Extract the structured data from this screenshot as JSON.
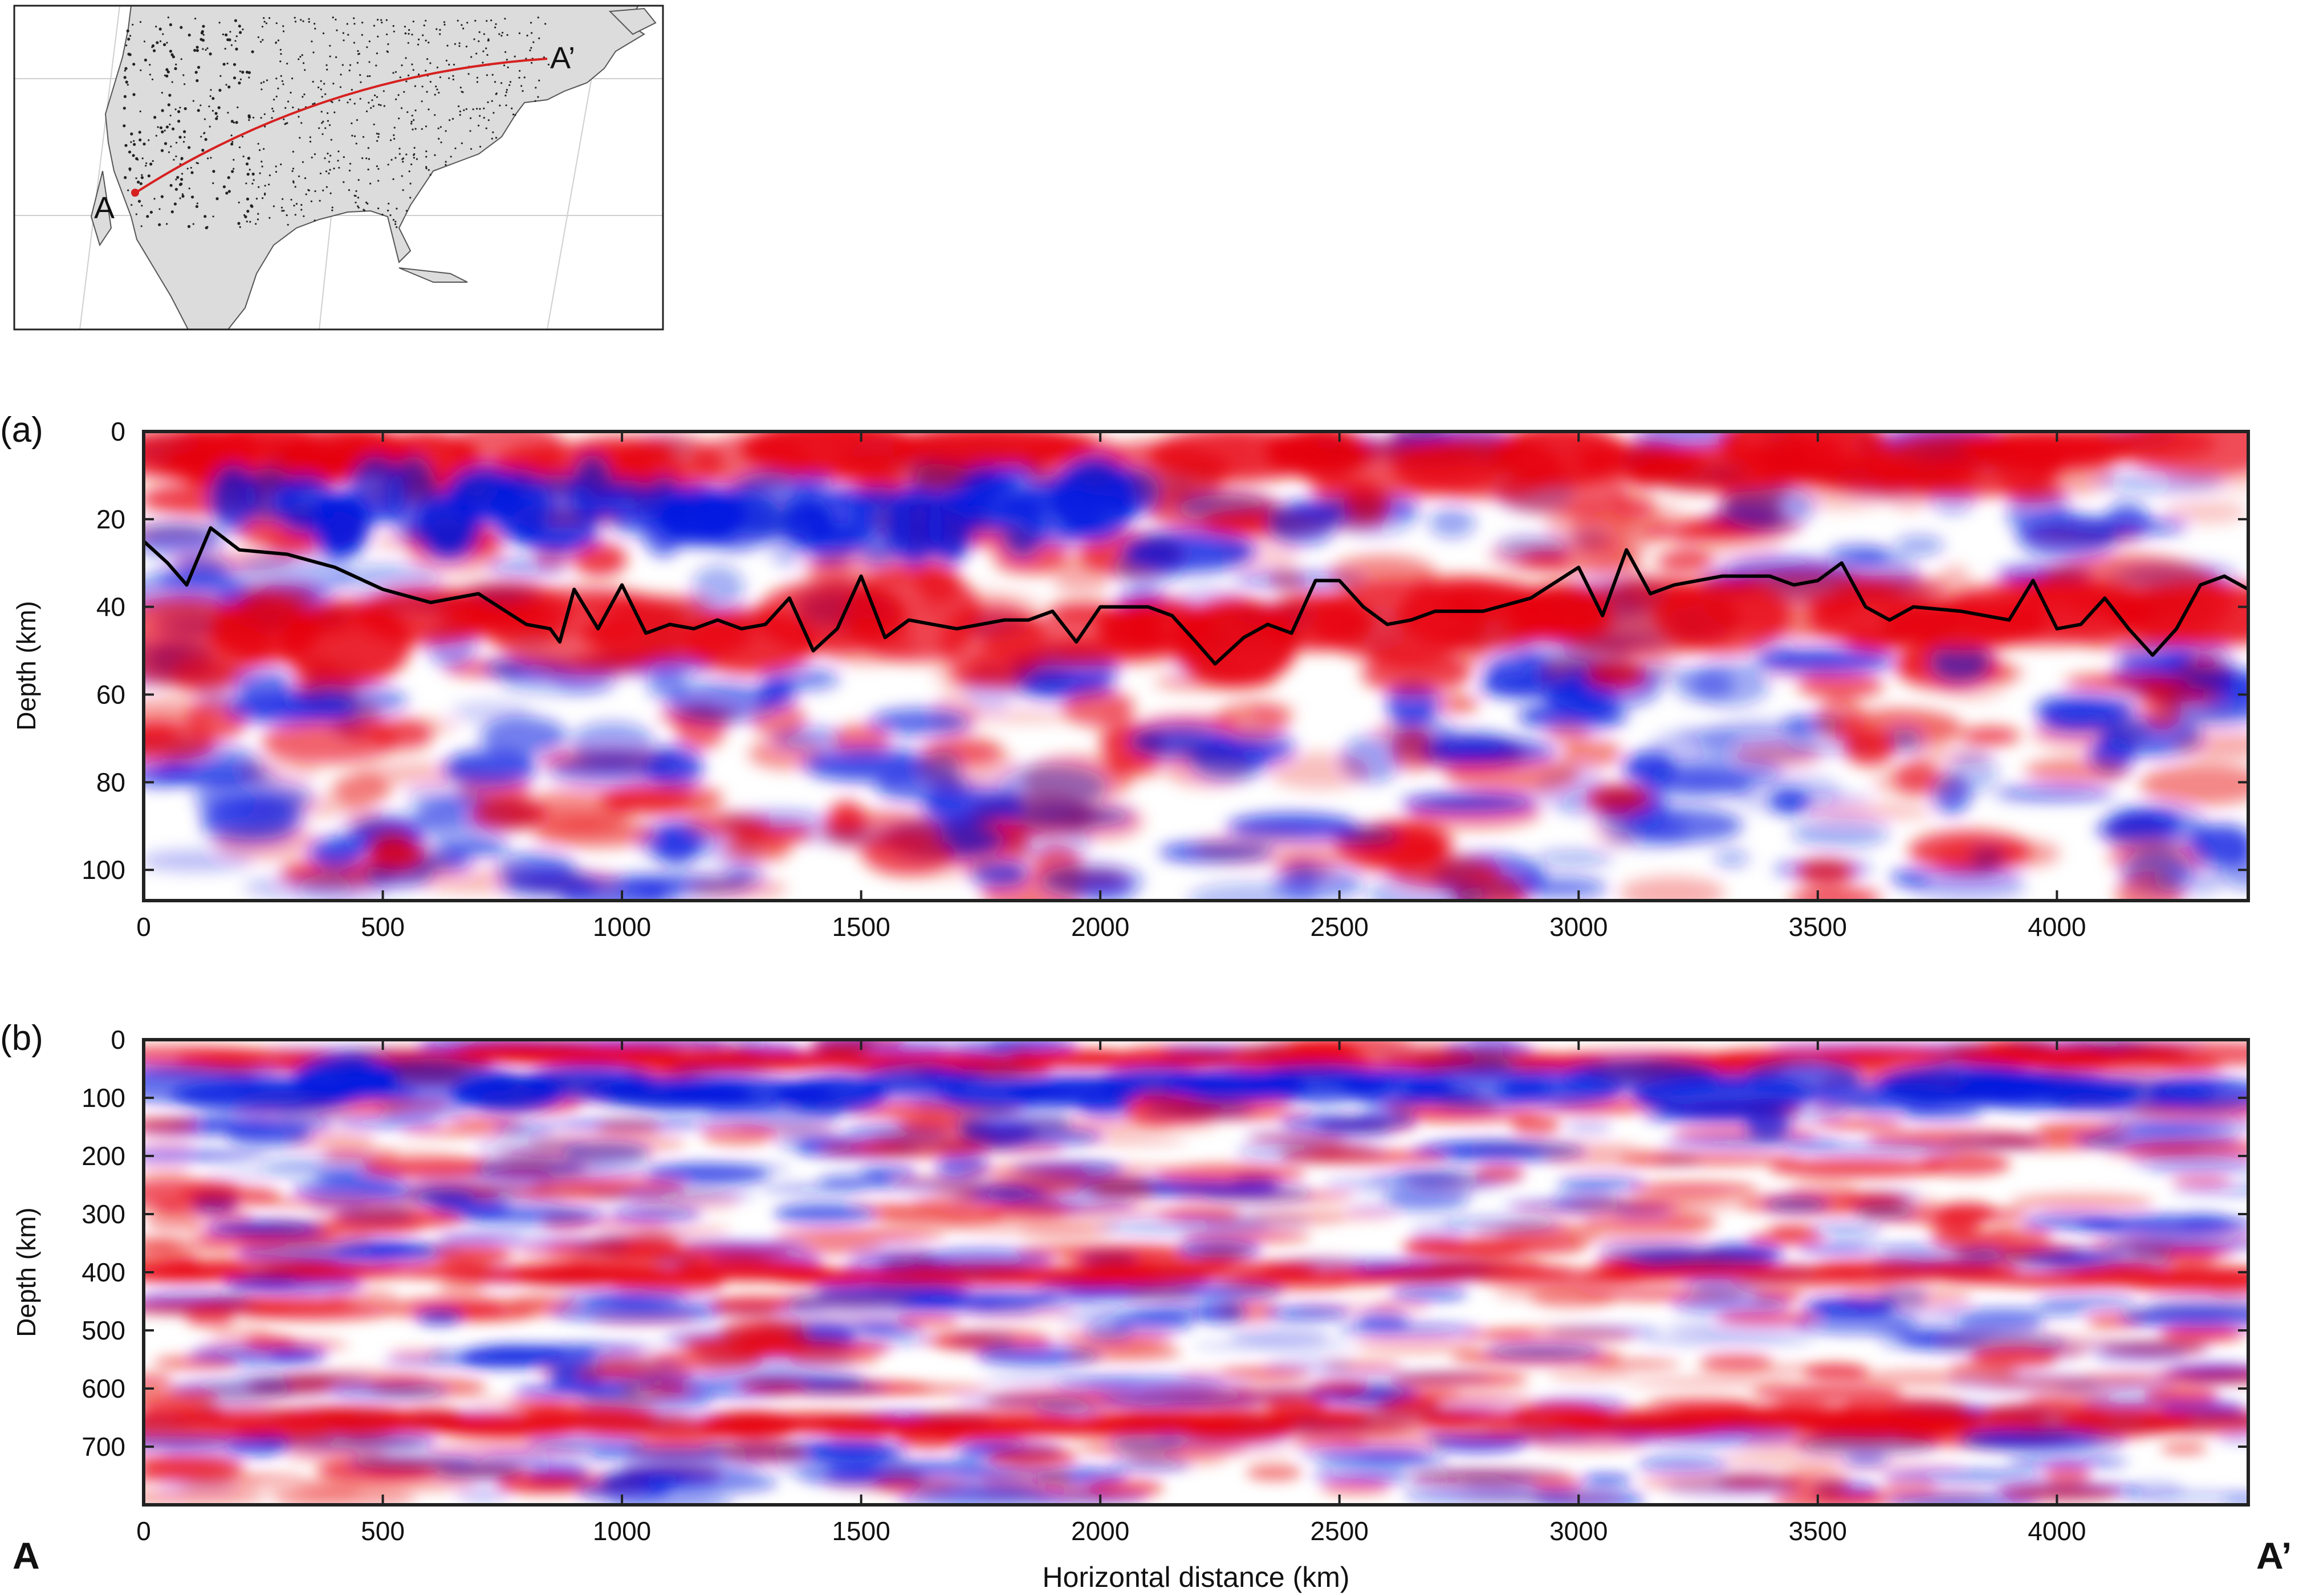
{
  "figure": {
    "map": {
      "start_label": "A",
      "end_label": "A’",
      "colors": {
        "land": "#d9d9d9",
        "ocean": "#ffffff",
        "profile_line": "#d62020",
        "stations": "#222222"
      }
    },
    "panel_a": {
      "panel_label": "(a)",
      "ylabel": "Depth (km)",
      "xlim": [
        0,
        4400
      ],
      "ylim": [
        107,
        0
      ],
      "x_ticks": [
        "0",
        "500",
        "1000",
        "1500",
        "2000",
        "2500",
        "3000",
        "3500",
        "4000"
      ],
      "y_ticks": [
        "0",
        "20",
        "40",
        "60",
        "80",
        "100"
      ]
    },
    "panel_b": {
      "panel_label": "(b)",
      "ylabel": "Depth (km)",
      "xlabel": "Horizontal distance (km)",
      "xlim": [
        0,
        4400
      ],
      "ylim": [
        800,
        0
      ],
      "x_ticks": [
        "0",
        "500",
        "1000",
        "1500",
        "2000",
        "2500",
        "3000",
        "3500",
        "4000"
      ],
      "y_ticks": [
        "0",
        "100",
        "200",
        "300",
        "400",
        "500",
        "600",
        "700"
      ]
    },
    "bottom_labels": {
      "left": "A",
      "right": "A’"
    },
    "colors": {
      "positive": "#e8000b",
      "negative": "#0015e0",
      "line": "#000000"
    }
  },
  "chart_data": [
    {
      "type": "heatmap",
      "title": "",
      "xlabel": "",
      "ylabel": "Depth (km)",
      "xlim": [
        0,
        4400
      ],
      "ylim": [
        107,
        0
      ],
      "grid": false,
      "legend": "none",
      "bands": [
        {
          "x_range": [
            0,
            4400
          ],
          "depth_range": [
            0,
            12
          ],
          "polarity": "positive"
        },
        {
          "x_range": [
            150,
            2100
          ],
          "depth_range": [
            10,
            25
          ],
          "polarity": "negative"
        },
        {
          "x_range": [
            0,
            4400
          ],
          "depth_range": [
            35,
            52
          ],
          "polarity": "positive"
        }
      ],
      "series": [
        {
          "type": "line",
          "x": [
            0,
            50,
            90,
            140,
            200,
            300,
            400,
            500,
            600,
            700,
            800,
            850,
            870,
            900,
            950,
            1000,
            1050,
            1100,
            1150,
            1200,
            1250,
            1300,
            1350,
            1400,
            1450,
            1500,
            1550,
            1600,
            1650,
            1700,
            1750,
            1800,
            1850,
            1900,
            1950,
            2000,
            2100,
            2150,
            2200,
            2240,
            2300,
            2350,
            2400,
            2450,
            2500,
            2550,
            2600,
            2650,
            2700,
            2800,
            2900,
            3000,
            3050,
            3100,
            3150,
            3200,
            3300,
            3400,
            3450,
            3500,
            3550,
            3600,
            3650,
            3700,
            3800,
            3900,
            3950,
            4000,
            4050,
            4100,
            4150,
            4200,
            4250,
            4300,
            4350,
            4400
          ],
          "y": [
            25,
            30,
            35,
            22,
            27,
            28,
            31,
            36,
            39,
            37,
            44,
            45,
            48,
            36,
            45,
            35,
            46,
            44,
            45,
            43,
            45,
            44,
            38,
            50,
            45,
            33,
            47,
            43,
            44,
            45,
            44,
            43,
            43,
            41,
            48,
            40,
            40,
            42,
            48,
            53,
            47,
            44,
            46,
            34,
            34,
            40,
            44,
            43,
            41,
            41,
            38,
            31,
            42,
            27,
            37,
            35,
            33,
            33,
            35,
            34,
            30,
            40,
            43,
            40,
            41,
            43,
            34,
            45,
            44,
            38,
            45,
            51,
            45,
            35,
            33,
            36
          ]
        }
      ]
    },
    {
      "type": "heatmap",
      "title": "",
      "xlabel": "Horizontal distance (km)",
      "ylabel": "Depth (km)",
      "xlim": [
        0,
        4400
      ],
      "ylim": [
        800,
        0
      ],
      "grid": false,
      "legend": "none",
      "bands": [
        {
          "x_range": [
            0,
            4400
          ],
          "depth_range": [
            15,
            50
          ],
          "polarity": "positive"
        },
        {
          "x_range": [
            0,
            4400
          ],
          "depth_range": [
            50,
            110
          ],
          "polarity": "negative"
        },
        {
          "x_range": [
            0,
            4400
          ],
          "depth_range": [
            390,
            420
          ],
          "polarity": "positive"
        },
        {
          "x_range": [
            0,
            4400
          ],
          "depth_range": [
            640,
            680
          ],
          "polarity": "positive"
        }
      ]
    }
  ]
}
